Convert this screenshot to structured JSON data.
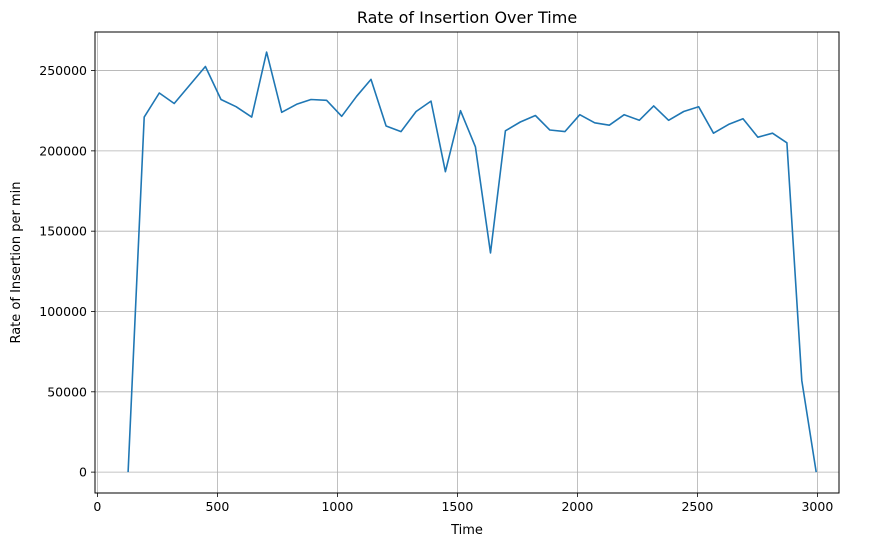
{
  "chart_data": {
    "type": "line",
    "title": "Rate of Insertion Over Time",
    "xlabel": "Time",
    "ylabel": "Rate of Insertion per min",
    "xlim": [
      -10,
      3090
    ],
    "ylim": [
      -13000,
      274000
    ],
    "xticks": [
      0,
      500,
      1000,
      1500,
      2000,
      2500,
      3000
    ],
    "yticks": [
      0,
      50000,
      100000,
      150000,
      200000,
      250000
    ],
    "grid": true,
    "colors": {
      "line": "#1f77b4",
      "grid": "#b0b0b0",
      "axes": "#000000"
    },
    "series": [
      {
        "x": [
          128,
          195,
          258,
          320,
          385,
          450,
          515,
          578,
          643,
          705,
          768,
          830,
          890,
          955,
          1018,
          1080,
          1140,
          1203,
          1265,
          1328,
          1390,
          1450,
          1513,
          1575,
          1638,
          1700,
          1762,
          1825,
          1885,
          1948,
          2010,
          2072,
          2133,
          2195,
          2258,
          2318,
          2380,
          2443,
          2505,
          2567,
          2630,
          2690,
          2752,
          2813,
          2873,
          2935,
          2995
        ],
        "y": [
          0,
          221000,
          236000,
          229500,
          241000,
          252500,
          232000,
          227500,
          221000,
          261500,
          224000,
          229000,
          232000,
          231500,
          221500,
          234000,
          244500,
          215500,
          212000,
          224500,
          231000,
          187000,
          225000,
          202500,
          136500,
          212500,
          218000,
          222000,
          213000,
          212000,
          222500,
          217500,
          216000,
          222500,
          219000,
          228000,
          219000,
          224500,
          227500,
          211000,
          216500,
          220000,
          208500,
          211000,
          205000,
          57000,
          0
        ]
      }
    ]
  }
}
